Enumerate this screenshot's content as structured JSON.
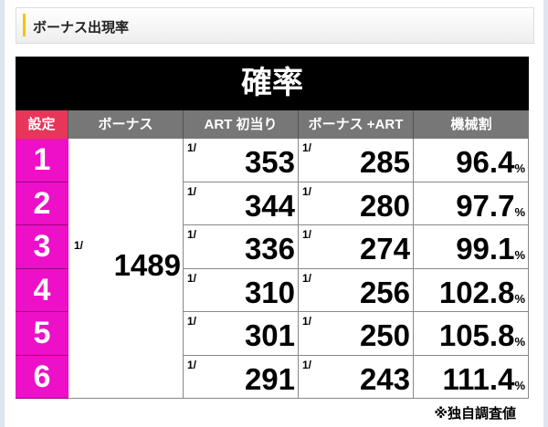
{
  "section_title": "ボーナス出現率",
  "table": {
    "title": "確率",
    "headers": [
      "設定",
      "ボーナス",
      "ART 初当り",
      "ボーナス +ART",
      "機械割"
    ],
    "prefix": "1/",
    "percent": "%",
    "bonus": "1489",
    "rows": [
      {
        "setting": "1",
        "art": "353",
        "bonus_art": "285",
        "payout": "96.4"
      },
      {
        "setting": "2",
        "art": "344",
        "bonus_art": "280",
        "payout": "97.7"
      },
      {
        "setting": "3",
        "art": "336",
        "bonus_art": "274",
        "payout": "99.1"
      },
      {
        "setting": "4",
        "art": "310",
        "bonus_art": "256",
        "payout": "102.8"
      },
      {
        "setting": "5",
        "art": "301",
        "bonus_art": "250",
        "payout": "105.8"
      },
      {
        "setting": "6",
        "art": "291",
        "bonus_art": "243",
        "payout": "111.4"
      }
    ]
  },
  "note": "※独自調査値",
  "colors": {
    "setting_bg": "#ee0fc8",
    "setting_header": "#e8365a",
    "accent": "#f5c400"
  }
}
